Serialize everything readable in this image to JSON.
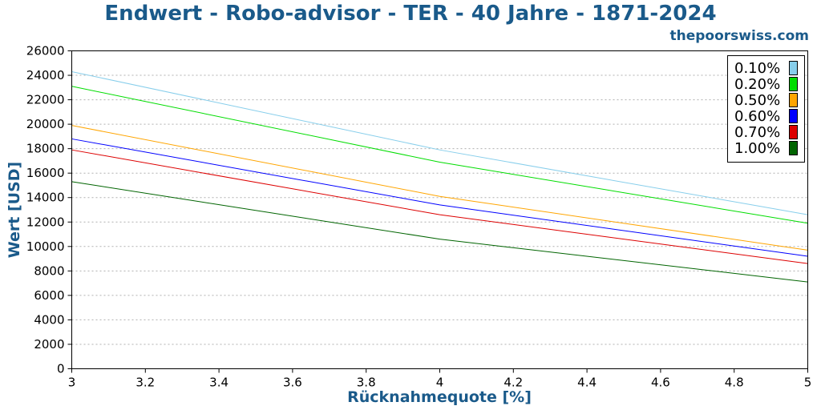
{
  "colors": {
    "title": "#1a5a8a",
    "grid": "#b0b0b0"
  },
  "brand": "thepoorswiss.com",
  "chart_data": {
    "type": "line",
    "title": "Endwert - Robo-advisor - TER - 40 Jahre - 1871-2024",
    "xlabel": "Rücknahmequote [%]",
    "ylabel": "Wert [USD]",
    "xlim": [
      3,
      5
    ],
    "ylim": [
      0,
      26000
    ],
    "xticks": [
      3,
      3.2,
      3.4,
      3.6,
      3.8,
      4,
      4.2,
      4.4,
      4.6,
      4.8,
      5
    ],
    "xtick_labels": [
      "3",
      "3.2",
      "3.4",
      "3.6",
      "3.8",
      "4",
      "4.2",
      "4.4",
      "4.6",
      "4.8",
      "5"
    ],
    "yticks": [
      0,
      2000,
      4000,
      6000,
      8000,
      10000,
      12000,
      14000,
      16000,
      18000,
      20000,
      22000,
      24000,
      26000
    ],
    "ytick_labels": [
      "0",
      "2000",
      "4000",
      "6000",
      "8000",
      "10000",
      "12000",
      "14000",
      "16000",
      "18000",
      "20000",
      "22000",
      "24000",
      "26000"
    ],
    "grid": "horizontal dotted",
    "legend_position": "top-right",
    "series": [
      {
        "name": "0.10%",
        "color": "#87ceeb",
        "x": [
          3,
          4,
          5
        ],
        "values": [
          24300,
          17900,
          12600
        ]
      },
      {
        "name": "0.20%",
        "color": "#00dd00",
        "x": [
          3,
          4,
          5
        ],
        "values": [
          23100,
          16900,
          11900
        ]
      },
      {
        "name": "0.50%",
        "color": "#ffa500",
        "x": [
          3,
          4,
          5
        ],
        "values": [
          19900,
          14100,
          9700
        ]
      },
      {
        "name": "0.60%",
        "color": "#0000ff",
        "x": [
          3,
          4,
          5
        ],
        "values": [
          18800,
          13400,
          9200
        ]
      },
      {
        "name": "0.70%",
        "color": "#dd0000",
        "x": [
          3,
          4,
          5
        ],
        "values": [
          17900,
          12600,
          8600
        ]
      },
      {
        "name": "1.00%",
        "color": "#006400",
        "x": [
          3,
          4,
          5
        ],
        "values": [
          15300,
          10600,
          7100
        ]
      }
    ]
  }
}
